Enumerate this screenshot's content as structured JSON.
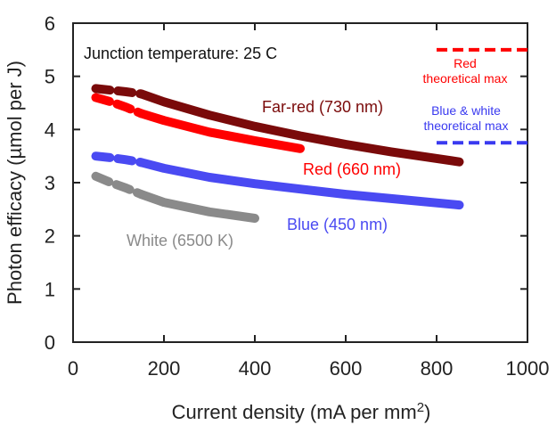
{
  "chart_data": {
    "type": "line",
    "title": "",
    "xlabel": "Current density (mA per mm",
    "xlabel_superscript": "2",
    "xlabel_suffix": ")",
    "ylabel": "Photon efficacy (µmol per J)",
    "xlim": [
      0,
      1000
    ],
    "ylim": [
      0,
      6
    ],
    "xticks": [
      0,
      200,
      400,
      600,
      800,
      1000
    ],
    "yticks": [
      0,
      1,
      2,
      3,
      4,
      5,
      6
    ],
    "grid": false,
    "annotation": "Junction temperature: 25 C",
    "series": [
      {
        "name": "Far-red (730 nm)",
        "color": "#7a0a0a",
        "dashed_x": [
          50,
          150
        ],
        "x": [
          150,
          200,
          300,
          400,
          500,
          600,
          700,
          850
        ],
        "y": [
          4.67,
          4.52,
          4.27,
          4.06,
          3.88,
          3.72,
          3.58,
          3.39
        ]
      },
      {
        "name": "Red (660 nm)",
        "color": "#ff0000",
        "dashed_x": [
          50,
          150
        ],
        "x": [
          150,
          200,
          300,
          400,
          500
        ],
        "y": [
          4.3,
          4.17,
          3.95,
          3.79,
          3.64
        ]
      },
      {
        "name": "Blue (450 nm)",
        "color": "#4a4af2",
        "dashed_x": [
          50,
          150
        ],
        "x": [
          150,
          200,
          300,
          400,
          500,
          600,
          700,
          850
        ],
        "y": [
          3.38,
          3.27,
          3.1,
          2.98,
          2.88,
          2.78,
          2.7,
          2.58
        ]
      },
      {
        "name": "White (6500 K)",
        "color": "#8a8a8a",
        "dashed_x": [
          50,
          150
        ],
        "x": [
          150,
          200,
          300,
          400
        ],
        "y": [
          2.78,
          2.63,
          2.45,
          2.33
        ]
      }
    ],
    "dashed_head": {
      "Far-red (730 nm)": [
        4.77,
        4.74,
        4.71,
        4.67
      ],
      "Red (660 nm)": [
        4.6,
        4.52,
        4.42,
        4.3
      ],
      "Blue (450 nm)": [
        3.5,
        3.47,
        3.43,
        3.38
      ],
      "White (6500 K)": [
        3.12,
        3.0,
        2.9,
        2.78
      ]
    },
    "theoretical_max": [
      {
        "label_line1": "Red",
        "label_line2": "theoretical max",
        "value": 5.5,
        "color": "#ff0000",
        "x_range": [
          800,
          1000
        ]
      },
      {
        "label_line1": "Blue & white",
        "label_line2": "theoretical max",
        "value": 3.75,
        "color": "#3a3af0",
        "x_range": [
          800,
          1000
        ]
      }
    ]
  }
}
